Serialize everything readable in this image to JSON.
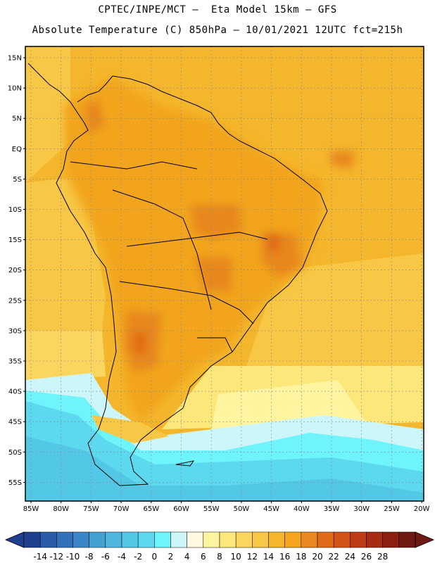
{
  "header": {
    "line1": "CPTEC/INPE/MCT —  Eta Model 15km — GFS",
    "line2": "Absolute Temperature (C) 850hPa — 10/01/2021 12UTC fct=215h"
  },
  "map": {
    "lat_labels": [
      "15N",
      "10N",
      "5N",
      "EQ",
      "5S",
      "10S",
      "15S",
      "20S",
      "25S",
      "30S",
      "35S",
      "40S",
      "45S",
      "50S",
      "55S"
    ],
    "lon_labels": [
      "85W",
      "80W",
      "75W",
      "70W",
      "65W",
      "60W",
      "55W",
      "50W",
      "45W",
      "40W",
      "35W",
      "30W",
      "25W",
      "20W"
    ]
  },
  "colorbar": {
    "labels": [
      "-14",
      "-12",
      "-10",
      "-8",
      "-6",
      "-4",
      "-2",
      "0",
      "2",
      "4",
      "6",
      "8",
      "10",
      "12",
      "14",
      "16",
      "18",
      "20",
      "22",
      "24",
      "26",
      "28"
    ],
    "colors": [
      "#1f3f8f",
      "#2b5aa8",
      "#3271b8",
      "#3b86c6",
      "#45a0d2",
      "#4fb6de",
      "#53c8e6",
      "#5cd9ee",
      "#6ef4fa",
      "#cdf6fb",
      "#fff9e1",
      "#fff4a0",
      "#fce77a",
      "#fad660",
      "#f7c745",
      "#f4b62c",
      "#f2a51d",
      "#e8881e",
      "#e06a18",
      "#d35216",
      "#c03c14",
      "#a82a12",
      "#8c1f10",
      "#6e1a12"
    ]
  },
  "colors": {
    "ocean_warm": "#f4b62c",
    "land": "#f2a51d",
    "hot": "#e8881e",
    "cold_ocean": "#53c8e6"
  }
}
